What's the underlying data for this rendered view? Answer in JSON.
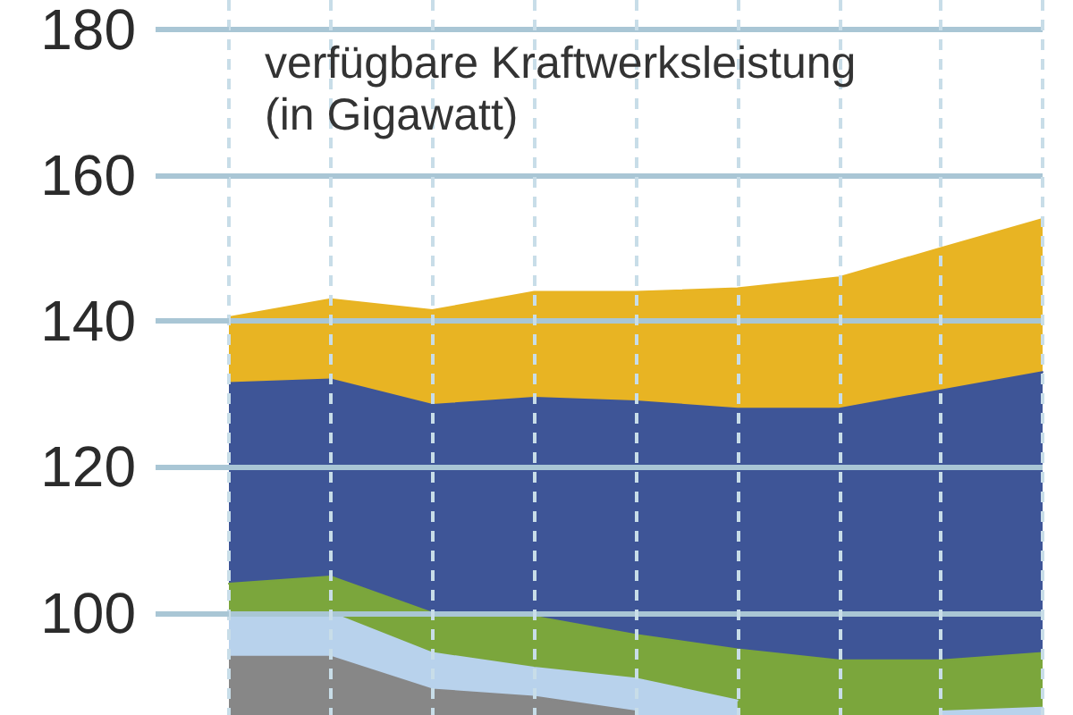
{
  "chart_data": {
    "type": "area",
    "title": "verfügbare Kraftwerksleistung",
    "subtitle": "(in Gigawatt)",
    "categories": [
      null,
      null,
      null,
      null,
      null,
      null,
      null,
      null,
      null
    ],
    "series": [
      {
        "color": "#e8b423",
        "values": [
          140.5,
          143,
          141.5,
          144,
          144,
          144.5,
          146,
          150,
          154
        ]
      },
      {
        "color": "#3e5597",
        "values": [
          131.5,
          132,
          128.5,
          129.5,
          129,
          128,
          128,
          130.5,
          133
        ]
      },
      {
        "color": "#7ba63c",
        "values": [
          104,
          105,
          100,
          99.5,
          97,
          95,
          93.5,
          93.5,
          94.5
        ]
      },
      {
        "color": "#b8d2ec",
        "values": [
          100,
          100,
          94.5,
          92.5,
          91,
          88,
          null,
          86.5,
          87
        ]
      },
      {
        "color": "#878787",
        "values": [
          94,
          94,
          89.5,
          88.5,
          86.5,
          null,
          null,
          null,
          null
        ]
      }
    ],
    "ylim": [
      86,
      184
    ],
    "yticks": [
      100,
      120,
      140,
      160,
      180
    ],
    "grid": true,
    "tick_labels": "y"
  }
}
